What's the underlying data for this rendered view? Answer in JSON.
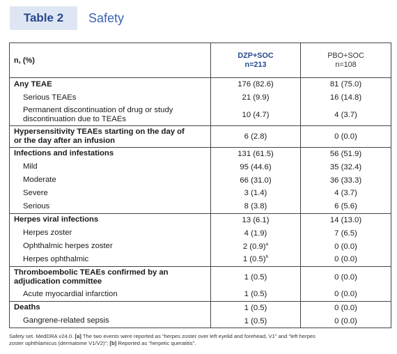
{
  "header": {
    "tag": "Table 2",
    "title": "Safety"
  },
  "columns": {
    "label": "n, (%)",
    "dzp": {
      "line1": "DZP+SOC",
      "line2": "n=213"
    },
    "pbo": {
      "line1": "PBO+SOC",
      "line2": "n=108"
    }
  },
  "rows": [
    {
      "label": "Any TEAE",
      "dzp": "176 (82.6)",
      "pbo": "81 (75.0)"
    },
    {
      "label": "Serious TEAEs",
      "dzp": "21 (9.9)",
      "pbo": "16 (14.8)"
    },
    {
      "label_line1": "Permanent discontinuation of drug or study",
      "label_line2": "discontinuation due to TEAEs",
      "dzp": "10 (4.7)",
      "pbo": "4 (3.7)"
    },
    {
      "label_line1": "Hypersensitivity TEAEs starting on the day of",
      "label_line2": "or the day after an infusion",
      "dzp": "6 (2.8)",
      "pbo": "0 (0.0)"
    },
    {
      "label": "Infections and infestations",
      "dzp": "131 (61.5)",
      "pbo": "56 (51.9)"
    },
    {
      "label": "Mild",
      "dzp": "95 (44.6)",
      "pbo": "35 (32.4)"
    },
    {
      "label": "Moderate",
      "dzp": "66 (31.0)",
      "pbo": "36 (33.3)"
    },
    {
      "label": "Severe",
      "dzp": "3 (1.4)",
      "pbo": "4 (3.7)"
    },
    {
      "label": "Serious",
      "dzp": "8 (3.8)",
      "pbo": "6 (5.6)"
    },
    {
      "label": "Herpes viral infections",
      "dzp": "13 (6.1)",
      "pbo": "14 (13.0)"
    },
    {
      "label": "Herpes zoster",
      "dzp": "4 (1.9)",
      "pbo": "7 (6.5)"
    },
    {
      "label": "Ophthalmic herpes zoster",
      "dzp": "2 (0.9)",
      "dzp_sup": "a",
      "pbo": "0 (0.0)"
    },
    {
      "label": "Herpes ophthalmic",
      "dzp": "1 (0.5)",
      "dzp_sup": "b",
      "pbo": "0 (0.0)"
    },
    {
      "label_line1": "Thromboembolic TEAEs confirmed by an",
      "label_line2": "adjudication committee",
      "dzp": "1 (0.5)",
      "pbo": "0 (0.0)"
    },
    {
      "label": "Acute myocardial infarction",
      "dzp": "1 (0.5)",
      "pbo": "0 (0.0)"
    },
    {
      "label": "Deaths",
      "dzp": "1 (0.5)",
      "pbo": "0 (0.0)"
    },
    {
      "label": "Gangrene-related sepsis",
      "dzp": "1 (0.5)",
      "pbo": "0 (0.0)"
    }
  ],
  "footnote": {
    "line1_pre": "Safety set. MedDRA v24.0. ",
    "line1_tag_a": "[a]",
    "line1_post": " The two events were reported as “herpes zoster over left eyelid and forehead, V1” and “left herpes",
    "line2_pre": "zoster ophthlamicus (dermatome V1/V2)”; ",
    "line2_tag_b": "[b]",
    "line2_post": " Reported as “herpetic queratitis”."
  }
}
